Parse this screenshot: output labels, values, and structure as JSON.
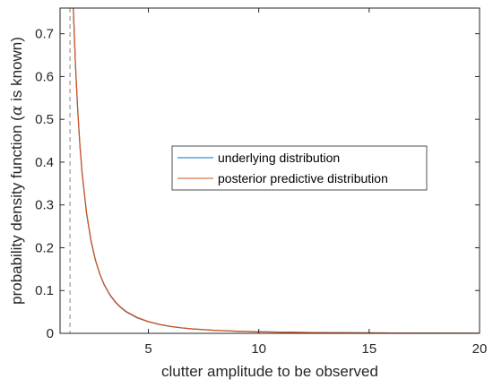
{
  "chart_data": {
    "type": "line",
    "xlabel": "clutter amplitude to be observed",
    "ylabel_prefix": "probability density function (",
    "ylabel_symbol": "α",
    "ylabel_suffix": " is known)",
    "xlim": [
      1,
      20
    ],
    "ylim": [
      0,
      0.76
    ],
    "x_ticks": [
      {
        "value": 5,
        "label": "5"
      },
      {
        "value": 10,
        "label": "10"
      },
      {
        "value": 15,
        "label": "15"
      },
      {
        "value": 20,
        "label": "20"
      }
    ],
    "y_ticks": [
      {
        "value": 0,
        "label": "0"
      },
      {
        "value": 0.1,
        "label": "0.1"
      },
      {
        "value": 0.2,
        "label": "0.2"
      },
      {
        "value": 0.3,
        "label": "0.3"
      },
      {
        "value": 0.4,
        "label": "0.4"
      },
      {
        "value": 0.5,
        "label": "0.5"
      },
      {
        "value": 0.6,
        "label": "0.6"
      },
      {
        "value": 0.7,
        "label": "0.7"
      }
    ],
    "grid": false,
    "legend_position": "center-right",
    "reference_line": {
      "x": 1.45,
      "style": "dashed",
      "color": "#999999"
    },
    "series": [
      {
        "name": "underlying distribution",
        "color": "#0072BD",
        "x": [
          1.6,
          1.7,
          1.8,
          1.9,
          2.0,
          2.2,
          2.4,
          2.6,
          2.8,
          3.0,
          3.25,
          3.5,
          3.75,
          4.0,
          4.5,
          5.0,
          5.5,
          6.0,
          6.5,
          7.0,
          8.0,
          9.0,
          10.0,
          11.0,
          12.0,
          13.0,
          14.0,
          15.0,
          16.0,
          17.0,
          18.0,
          19.0,
          20.0
        ],
        "y": [
          0.76,
          0.625,
          0.52,
          0.438,
          0.373,
          0.28,
          0.216,
          0.171,
          0.138,
          0.113,
          0.09,
          0.073,
          0.06,
          0.05,
          0.036,
          0.027,
          0.0205,
          0.016,
          0.0127,
          0.0102,
          0.0069,
          0.0049,
          0.0036,
          0.0027,
          0.0021,
          0.0016,
          0.0013,
          0.001,
          0.0008,
          0.0007,
          0.0005,
          0.0004,
          0.0003
        ]
      },
      {
        "name": "posterior predictive distribution",
        "color": "#D95319",
        "x": [
          1.6,
          1.7,
          1.8,
          1.9,
          2.0,
          2.2,
          2.4,
          2.6,
          2.8,
          3.0,
          3.25,
          3.5,
          3.75,
          4.0,
          4.5,
          5.0,
          5.5,
          6.0,
          6.5,
          7.0,
          8.0,
          9.0,
          10.0,
          11.0,
          12.0,
          13.0,
          14.0,
          15.0,
          16.0,
          17.0,
          18.0,
          19.0,
          20.0
        ],
        "y": [
          0.762,
          0.627,
          0.522,
          0.44,
          0.375,
          0.282,
          0.218,
          0.172,
          0.139,
          0.114,
          0.091,
          0.074,
          0.061,
          0.051,
          0.037,
          0.0275,
          0.021,
          0.0163,
          0.013,
          0.0104,
          0.007,
          0.005,
          0.0037,
          0.0028,
          0.0021,
          0.0017,
          0.0013,
          0.0011,
          0.0009,
          0.0007,
          0.0006,
          0.0005,
          0.0004
        ]
      }
    ]
  }
}
